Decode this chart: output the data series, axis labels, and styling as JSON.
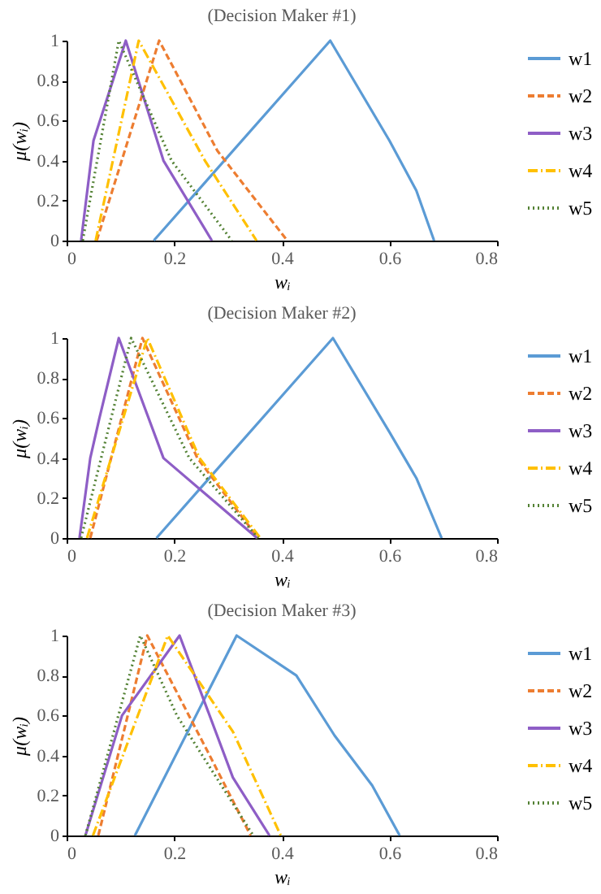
{
  "chart_data": [
    {
      "type": "line",
      "title": "(Decision Maker #1)",
      "xlabel": "wᵢ",
      "ylabel": "μ(wᵢ)",
      "xlim": [
        0,
        0.8
      ],
      "ylim": [
        0,
        1
      ],
      "xticks": [
        0,
        0.2,
        0.4,
        0.6,
        0.8
      ],
      "yticks": [
        0,
        0.2,
        0.4,
        0.6,
        0.8,
        1
      ],
      "legend": "right",
      "series": [
        {
          "name": "w1",
          "color": "#5b9bd5",
          "line_style": "solid",
          "x": [
            0.162,
            0.49,
            0.6,
            0.65,
            0.683
          ],
          "values": [
            0,
            1,
            0.5,
            0.25,
            0
          ]
        },
        {
          "name": "w2",
          "color": "#ed7d31",
          "line_style": "dashed",
          "x": [
            0.056,
            0.172,
            0.28,
            0.41
          ],
          "values": [
            0,
            1,
            0.45,
            0
          ]
        },
        {
          "name": "w3",
          "color": "#8e5ec6",
          "line_style": "solid",
          "x": [
            0.027,
            0.05,
            0.11,
            0.18,
            0.27
          ],
          "values": [
            0,
            0.5,
            1,
            0.4,
            0
          ]
        },
        {
          "name": "w4",
          "color": "#ffc000",
          "line_style": "dashdot",
          "x": [
            0.054,
            0.134,
            0.257,
            0.353
          ],
          "values": [
            0,
            1,
            0.4,
            0
          ]
        },
        {
          "name": "w5",
          "color": "#548235",
          "line_style": "dotted",
          "x": [
            0.03,
            0.097,
            0.195,
            0.307
          ],
          "values": [
            0,
            1,
            0.4,
            0
          ]
        }
      ]
    },
    {
      "type": "line",
      "title": "(Decision Maker #2)",
      "xlabel": "wᵢ",
      "ylabel": "μ(wᵢ)",
      "xlim": [
        0,
        0.8
      ],
      "ylim": [
        0,
        1
      ],
      "xticks": [
        0,
        0.2,
        0.4,
        0.6,
        0.8
      ],
      "yticks": [
        0,
        0.2,
        0.4,
        0.6,
        0.8,
        1
      ],
      "legend": "right",
      "series": [
        {
          "name": "w1",
          "color": "#5b9bd5",
          "line_style": "solid",
          "x": [
            0.167,
            0.495,
            0.6,
            0.65,
            0.697
          ],
          "values": [
            0,
            1,
            0.53,
            0.3,
            0
          ]
        },
        {
          "name": "w2",
          "color": "#ed7d31",
          "line_style": "dashed",
          "x": [
            0.044,
            0.141,
            0.243,
            0.356
          ],
          "values": [
            0,
            1,
            0.4,
            0
          ]
        },
        {
          "name": "w3",
          "color": "#8e5ec6",
          "line_style": "solid",
          "x": [
            0.024,
            0.044,
            0.061,
            0.097,
            0.18,
            0.354
          ],
          "values": [
            0,
            0.4,
            0.6,
            1,
            0.4,
            0
          ]
        },
        {
          "name": "w4",
          "color": "#ffc000",
          "line_style": "dashdot",
          "x": [
            0.038,
            0.15,
            0.247,
            0.36
          ],
          "values": [
            0,
            1,
            0.4,
            0
          ]
        },
        {
          "name": "w5",
          "color": "#548235",
          "line_style": "dotted",
          "x": [
            0.027,
            0.12,
            0.228,
            0.356
          ],
          "values": [
            0,
            1,
            0.4,
            0
          ]
        }
      ]
    },
    {
      "type": "line",
      "title": "(Decision Maker #3)",
      "xlabel": "wᵢ",
      "ylabel": "μ(wᵢ)",
      "xlim": [
        0,
        0.8
      ],
      "ylim": [
        0,
        1
      ],
      "xticks": [
        0,
        0.2,
        0.4,
        0.6,
        0.8
      ],
      "yticks": [
        0,
        0.2,
        0.4,
        0.6,
        0.8,
        1
      ],
      "legend": "right",
      "series": [
        {
          "name": "w1",
          "color": "#5b9bd5",
          "line_style": "solid",
          "x": [
            0.127,
            0.316,
            0.427,
            0.498,
            0.568,
            0.619
          ],
          "values": [
            0,
            1,
            0.8,
            0.5,
            0.25,
            0
          ]
        },
        {
          "name": "w2",
          "color": "#ed7d31",
          "line_style": "dashed",
          "x": [
            0.059,
            0.15,
            0.266,
            0.342
          ],
          "values": [
            0,
            1,
            0.4,
            0
          ]
        },
        {
          "name": "w3",
          "color": "#8e5ec6",
          "line_style": "solid",
          "x": [
            0.035,
            0.103,
            0.21,
            0.309,
            0.377
          ],
          "values": [
            0,
            0.6,
            1,
            0.29,
            0
          ]
        },
        {
          "name": "w4",
          "color": "#ffc000",
          "line_style": "dashdot",
          "x": [
            0.049,
            0.188,
            0.309,
            0.398
          ],
          "values": [
            0,
            1,
            0.52,
            0
          ]
        },
        {
          "name": "w5",
          "color": "#548235",
          "line_style": "dotted",
          "x": [
            0.035,
            0.137,
            0.205,
            0.347
          ],
          "values": [
            0,
            1,
            0.6,
            0
          ]
        }
      ]
    }
  ]
}
